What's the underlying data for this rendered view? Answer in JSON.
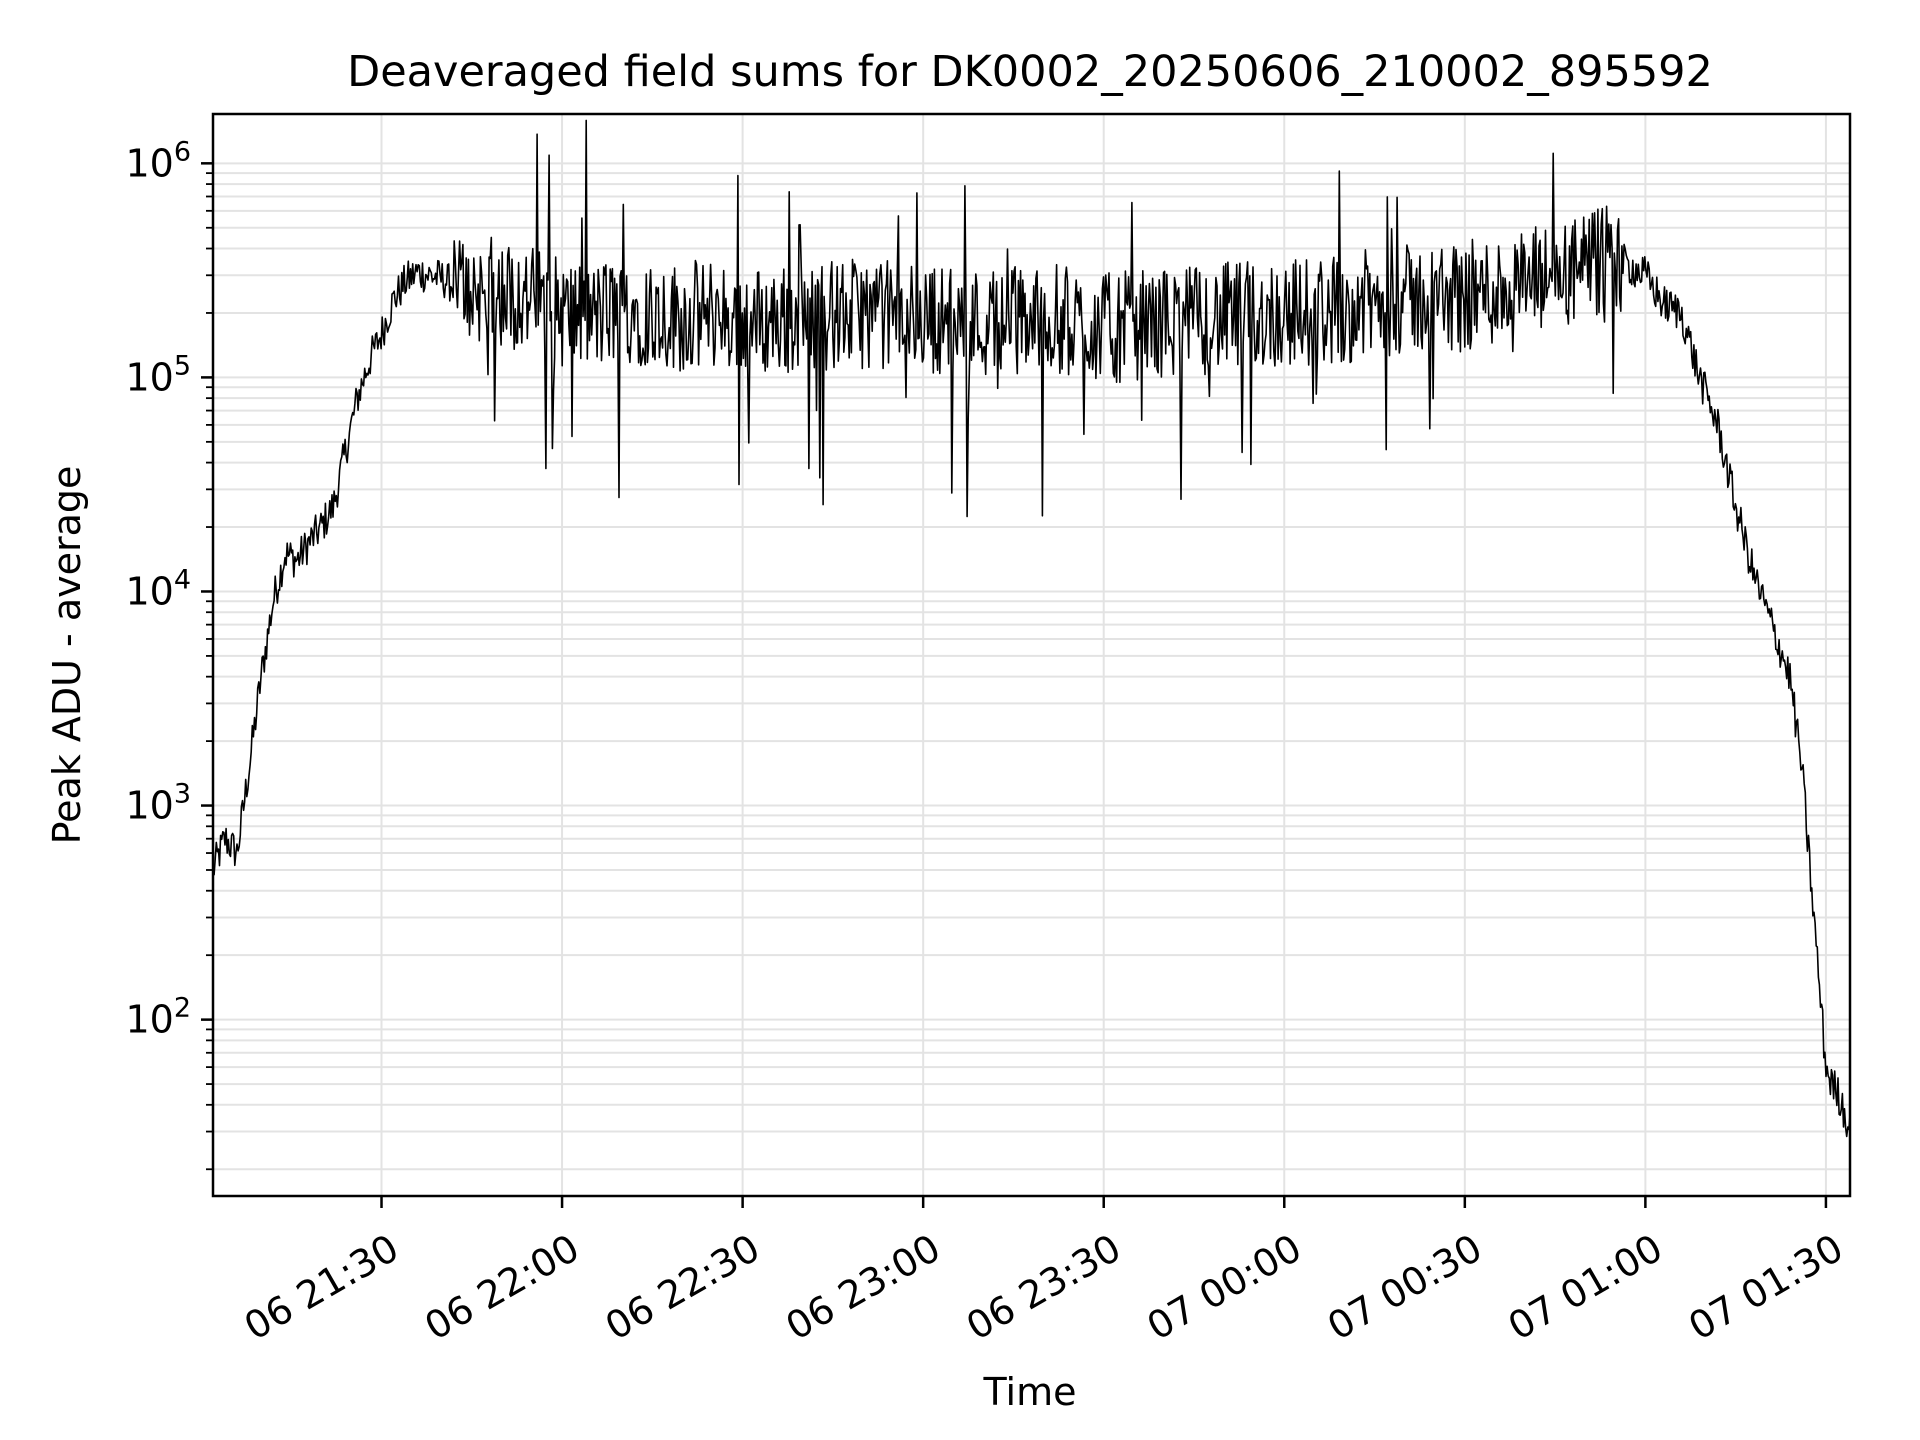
{
  "chart_data": {
    "type": "line",
    "title": "Deaveraged field sums for DK0002_20250606_210002_895592",
    "xlabel": "Time",
    "ylabel": "Peak ADU - average",
    "yscale": "log",
    "grid": true,
    "x_ticks": [
      "06 21:30",
      "06 22:00",
      "06 22:30",
      "06 23:00",
      "06 23:30",
      "07 00:00",
      "07 00:30",
      "07 01:00",
      "07 01:30"
    ],
    "y_tick_exponents": [
      2,
      3,
      4,
      5,
      6
    ],
    "y_tick_base": "10",
    "xlim": [
      "2025-06-06T21:02",
      "2025-06-07T01:34"
    ],
    "ylim": [
      15,
      1700000
    ],
    "series_color": "#000000",
    "series": [
      {
        "x": [
          "2025-06-06T21:02",
          "2025-06-06T21:04",
          "2025-06-06T21:06",
          "2025-06-06T21:08",
          "2025-06-06T21:10",
          "2025-06-06T21:12",
          "2025-06-06T21:14",
          "2025-06-06T21:16",
          "2025-06-06T21:18",
          "2025-06-06T21:20",
          "2025-06-06T21:22",
          "2025-06-06T21:24",
          "2025-06-06T21:26",
          "2025-06-06T21:28",
          "2025-06-06T21:30",
          "2025-06-06T21:32",
          "2025-06-06T21:34",
          "2025-06-06T21:36",
          "2025-06-06T21:38",
          "2025-06-06T21:40",
          "2025-06-06T21:42",
          "2025-06-06T21:44",
          "2025-06-06T21:50",
          "2025-06-06T21:55",
          "2025-06-06T22:00",
          "2025-06-06T22:05",
          "2025-06-06T22:10",
          "2025-06-06T22:15",
          "2025-06-06T22:20",
          "2025-06-06T22:25",
          "2025-06-06T22:30",
          "2025-06-06T22:40",
          "2025-06-06T22:50",
          "2025-06-06T23:00",
          "2025-06-06T23:10",
          "2025-06-06T23:20",
          "2025-06-06T23:30",
          "2025-06-06T23:40",
          "2025-06-06T23:50",
          "2025-06-07T00:00",
          "2025-06-07T00:10",
          "2025-06-07T00:20",
          "2025-06-07T00:30",
          "2025-06-07T00:40",
          "2025-06-07T00:50",
          "2025-06-07T00:55",
          "2025-06-07T01:00",
          "2025-06-07T01:03",
          "2025-06-07T01:06",
          "2025-06-07T01:09",
          "2025-06-07T01:12",
          "2025-06-07T01:15",
          "2025-06-07T01:18",
          "2025-06-07T01:21",
          "2025-06-07T01:24",
          "2025-06-07T01:26",
          "2025-06-07T01:28",
          "2025-06-07T01:30",
          "2025-06-07T01:31",
          "2025-06-07T01:32",
          "2025-06-07T01:33",
          "2025-06-07T01:34"
        ],
        "y": [
          500,
          700,
          600,
          1500,
          4000,
          9000,
          15000,
          14000,
          17000,
          20000,
          25000,
          45000,
          80000,
          120000,
          160000,
          230000,
          280000,
          310000,
          300000,
          290000,
          270000,
          260000,
          250000,
          230000,
          200000,
          190000,
          210000,
          200000,
          190000,
          200000,
          180000,
          190000,
          200000,
          190000,
          180000,
          190000,
          170000,
          180000,
          190000,
          200000,
          210000,
          230000,
          240000,
          270000,
          320000,
          360000,
          300000,
          220000,
          200000,
          100000,
          60000,
          25000,
          12000,
          7000,
          4000,
          1500,
          300,
          60,
          50,
          45,
          38,
          30
        ]
      }
    ]
  }
}
